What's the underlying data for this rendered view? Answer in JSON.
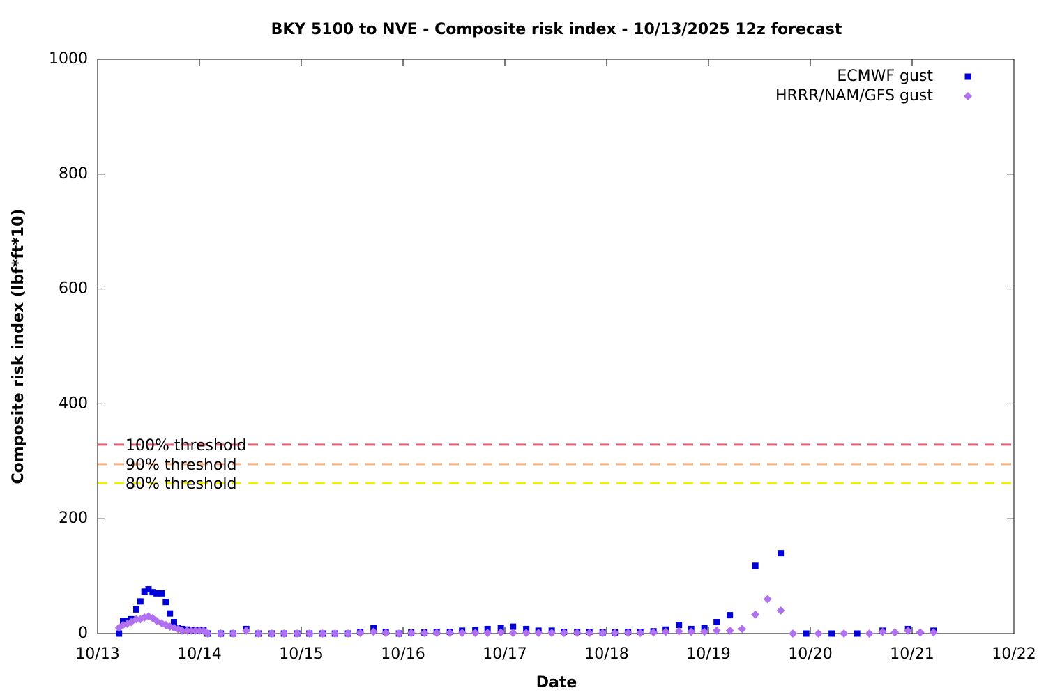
{
  "chart_data": {
    "type": "scatter",
    "title": "BKY 5100 to NVE - Composite risk index - 10/13/2025 12z forecast",
    "x_label": "Date",
    "y_label": "Composite risk index (lbf*ft*10)",
    "xlim": [
      13,
      22
    ],
    "xticks": [
      {
        "value": 13,
        "label": "10/13"
      },
      {
        "value": 14,
        "label": "10/14"
      },
      {
        "value": 15,
        "label": "10/15"
      },
      {
        "value": 16,
        "label": "10/16"
      },
      {
        "value": 17,
        "label": "10/17"
      },
      {
        "value": 18,
        "label": "10/18"
      },
      {
        "value": 19,
        "label": "10/19"
      },
      {
        "value": 20,
        "label": "10/20"
      },
      {
        "value": 21,
        "label": "10/21"
      },
      {
        "value": 22,
        "label": "10/22"
      }
    ],
    "ylim": [
      0,
      1000
    ],
    "yticks": [
      0,
      200,
      400,
      600,
      800,
      1000
    ],
    "grid": false,
    "legend": "top-right",
    "thresholds": [
      {
        "label": "100% threshold",
        "value": 329,
        "color": "#e0607a"
      },
      {
        "label": "90% threshold",
        "value": 295,
        "color": "#f4b080"
      },
      {
        "label": "80% threshold",
        "value": 262,
        "color": "#f0f000"
      }
    ],
    "series": [
      {
        "name": "ECMWF gust",
        "color": "#0000d8",
        "marker": "square",
        "x": [
          13.21,
          13.25,
          13.29,
          13.33,
          13.38,
          13.42,
          13.46,
          13.5,
          13.54,
          13.58,
          13.63,
          13.67,
          13.71,
          13.75,
          13.79,
          13.83,
          13.88,
          13.92,
          13.96,
          14,
          14.04,
          14.08,
          14.21,
          14.33,
          14.46,
          14.58,
          14.71,
          14.83,
          14.96,
          15.08,
          15.21,
          15.33,
          15.46,
          15.58,
          15.71,
          15.83,
          15.96,
          16.08,
          16.21,
          16.33,
          16.46,
          16.58,
          16.71,
          16.83,
          16.96,
          17.08,
          17.21,
          17.33,
          17.46,
          17.58,
          17.71,
          17.83,
          17.96,
          18.08,
          18.21,
          18.33,
          18.46,
          18.58,
          18.71,
          18.83,
          18.96,
          19.08,
          19.21,
          19.46,
          19.71,
          19.96,
          20.21,
          20.46,
          20.71,
          20.96,
          21.21
        ],
        "values": [
          0,
          22,
          22,
          25,
          42,
          56,
          73,
          77,
          72,
          70,
          70,
          55,
          35,
          20,
          10,
          8,
          7,
          6,
          6,
          6,
          6,
          0,
          0,
          0,
          8,
          0,
          0,
          0,
          0,
          0,
          0,
          0,
          0,
          3,
          10,
          3,
          0,
          2,
          2,
          3,
          3,
          5,
          6,
          8,
          10,
          12,
          8,
          5,
          5,
          3,
          3,
          3,
          2,
          2,
          3,
          3,
          4,
          7,
          15,
          8,
          10,
          20,
          32,
          118,
          140,
          0,
          0,
          0,
          5,
          8,
          5
        ]
      },
      {
        "name": "HRRR/NAM/GFS gust",
        "color": "#b070f0",
        "marker": "diamond",
        "x": [
          13.21,
          13.25,
          13.29,
          13.33,
          13.38,
          13.42,
          13.46,
          13.5,
          13.54,
          13.58,
          13.63,
          13.67,
          13.71,
          13.75,
          13.79,
          13.83,
          13.88,
          13.92,
          13.96,
          14,
          14.04,
          14.08,
          14.21,
          14.33,
          14.46,
          14.58,
          14.71,
          14.83,
          14.96,
          15.08,
          15.21,
          15.33,
          15.46,
          15.58,
          15.71,
          15.83,
          15.96,
          16.08,
          16.21,
          16.33,
          16.46,
          16.58,
          16.71,
          16.83,
          16.96,
          17.08,
          17.21,
          17.33,
          17.46,
          17.58,
          17.71,
          17.83,
          17.96,
          18.08,
          18.21,
          18.33,
          18.46,
          18.58,
          18.71,
          18.83,
          18.96,
          19.08,
          19.21,
          19.33,
          19.46,
          19.58,
          19.71,
          19.83,
          20.08,
          20.33,
          20.58,
          20.71,
          20.83,
          20.96,
          21.08,
          21.21
        ],
        "values": [
          10,
          15,
          17,
          20,
          25,
          25,
          28,
          30,
          27,
          22,
          18,
          15,
          12,
          10,
          8,
          5,
          5,
          5,
          5,
          5,
          5,
          0,
          0,
          0,
          5,
          0,
          0,
          0,
          0,
          0,
          0,
          0,
          0,
          1,
          3,
          1,
          0,
          1,
          1,
          1,
          1,
          1,
          1,
          1,
          2,
          1,
          1,
          1,
          1,
          1,
          1,
          1,
          1,
          1,
          1,
          1,
          2,
          3,
          4,
          3,
          3,
          5,
          5,
          8,
          33,
          60,
          40,
          0,
          0,
          0,
          0,
          3,
          2,
          5,
          2,
          2
        ]
      }
    ]
  }
}
